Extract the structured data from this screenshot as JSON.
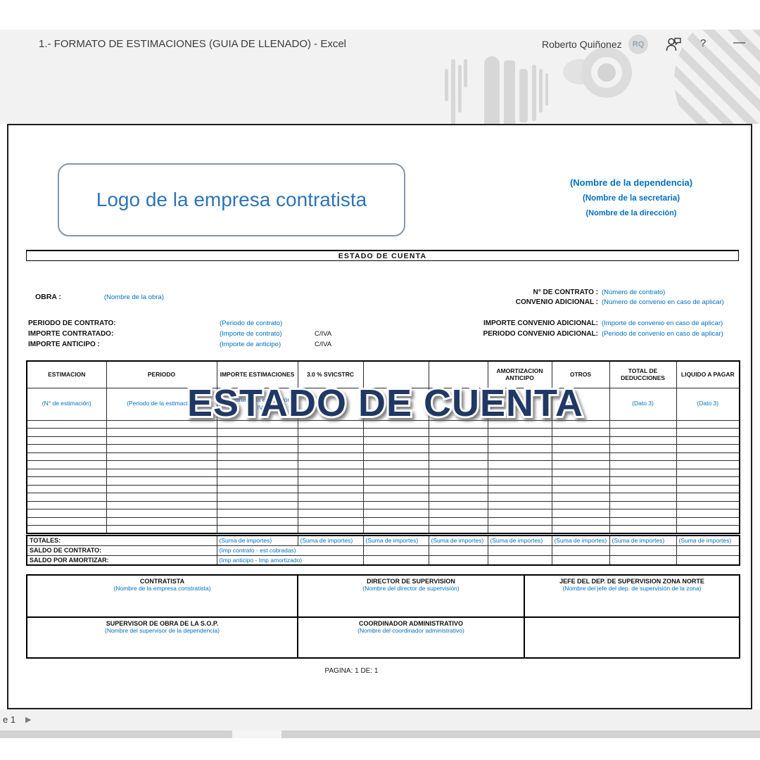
{
  "titlebar": {
    "title": "1.- FORMATO DE ESTIMACIONES (GUIA DE LLENADO)  -  Excel",
    "user": "Roberto Quiñonez",
    "avatar_initials": "RQ",
    "help_label": "?",
    "minimize_label": "—"
  },
  "header": {
    "logo_text": "Logo de la empresa contratista",
    "dependencia": "(Nombre de la dependencia)",
    "secretaria": "(Nombre de la secretaria)",
    "direccion": "(Nombre de la dirección)"
  },
  "section_title": "ESTADO DE CUENTA",
  "watermark_text": "ESTADO DE CUENTA",
  "obra": {
    "label": "OBRA :",
    "value": "(Nombre de la obra)"
  },
  "contract_right": {
    "no_contrato_label": "N° DE CONTRATO :",
    "no_contrato_value": "(Número de contrato)",
    "convenio_label": "CONVENIO ADICIONAL :",
    "convenio_value": "(Número de convenio en caso de aplicar)",
    "importe_conv_label": "IMPORTE CONVENIO ADICIONAL:",
    "importe_conv_value": "(Importe de convenio en caso de aplicar)",
    "periodo_conv_label": "PERIODO CONVENIO ADICIONAL:",
    "periodo_conv_value": "(Periodo de convenio en caso de aplicar)"
  },
  "contract_left": {
    "periodo_label": "PERIODO DE CONTRATO:",
    "periodo_value": "(Periodo de contrato)",
    "importe_label": "IMPORTE  CONTRATADO:",
    "importe_value": "(Importe de contrato)",
    "importe_iva": "C/IVA",
    "anticipo_label": "IMPORTE  ANTICIPO :",
    "anticipo_value": "(Importe de anticipo)",
    "anticipo_iva": "C/IVA"
  },
  "table": {
    "headers": [
      "ESTIMACION",
      "PERIODO",
      "IMPORTE ESTIMACIONES",
      "3.0 % SVICSTRC",
      "",
      "",
      "AMORTIZACION ANTICIPO",
      "OTROS",
      "TOTAL DE DEDUCCIONES",
      "LIQUIDO A PAGAR"
    ],
    "data_row": [
      "(N° de estimación)",
      "(Periodo de la estimación)",
      "(Importe de la estimación con IVA)",
      "",
      "",
      "",
      "",
      "",
      "(Dato 3)",
      "(Dato 3)"
    ],
    "empty_row_count": 14
  },
  "totals": {
    "totales_label": "TOTALES:",
    "suma": "(Suma de importes)",
    "saldo_contrato_label": "SALDO DE CONTRATO:",
    "saldo_contrato_value": "(Imp contrato - est cobradas)",
    "saldo_amortizar_label": "SALDO POR AMORTIZAR:",
    "saldo_amortizar_value": "(Imp anticipo - Imp amortizado)"
  },
  "signatures": {
    "rows": [
      [
        {
          "title": "CONTRATISTA",
          "name": "(Nombre de la empresa constratista)"
        },
        {
          "title": "DIRECTOR DE SUPERVISION",
          "name": "(Nombre del director de supervisión)"
        },
        {
          "title": "JEFE DEL DEP. DE SUPERVISION ZONA NORTE",
          "name": "(Nombre del jefe del dep. de supervisión de la zona)"
        }
      ],
      [
        {
          "title": "SUPERVISOR DE OBRA DE LA S.O.P.",
          "name": "(Nombre del supervisor de la dependencia)"
        },
        {
          "title": "COORDINADOR ADMINISTRATIVO",
          "name": "(Nombre del coordinador administrativo)"
        },
        {
          "title": "",
          "name": ""
        }
      ]
    ]
  },
  "footer": {
    "page": "PAGINA: 1 DE: 1"
  },
  "sheetbar": {
    "tab": "e 1",
    "next_arrow": "▶"
  },
  "colors": {
    "accent_blue": "#0070C0",
    "logo_blue": "#2E74B5",
    "watermark_navy": "#203864"
  }
}
